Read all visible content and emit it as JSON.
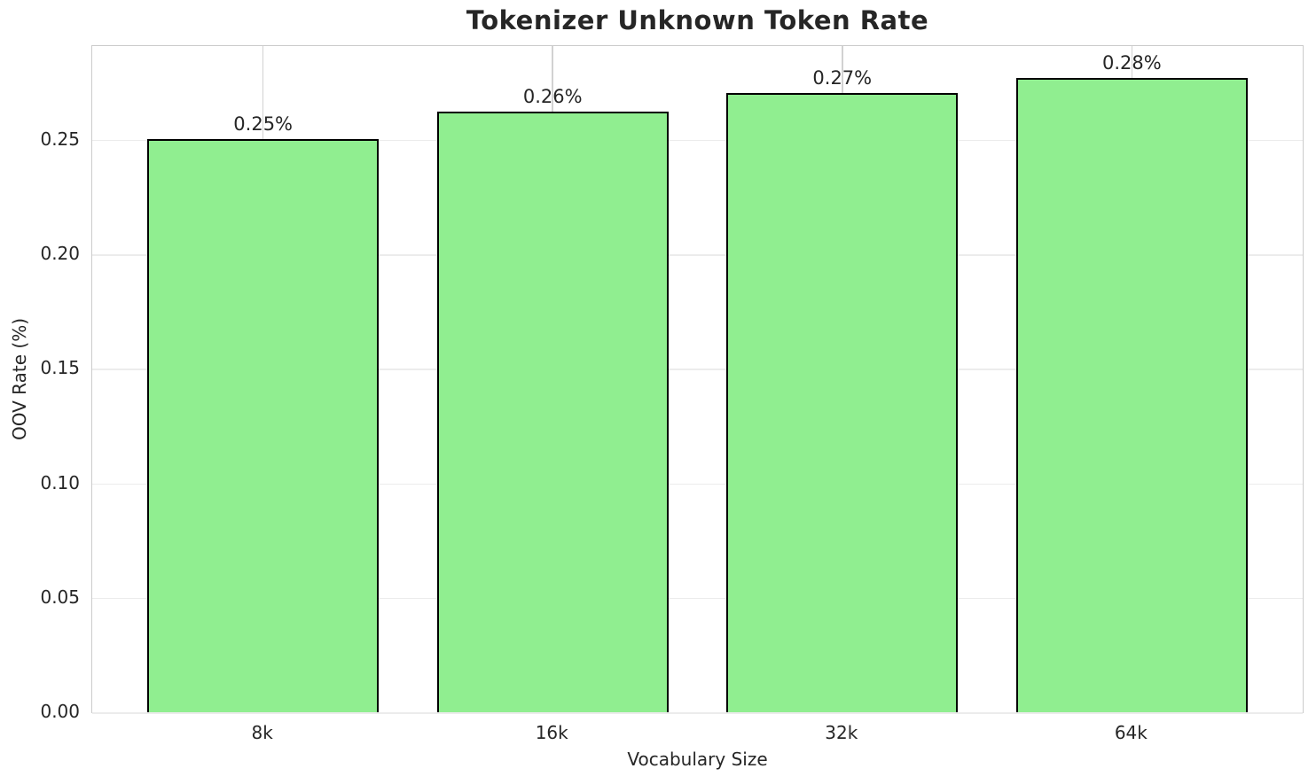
{
  "chart_data": {
    "type": "bar",
    "title": "Tokenizer Unknown Token Rate",
    "xlabel": "Vocabulary Size",
    "ylabel": "OOV Rate (%)",
    "categories": [
      "8k",
      "16k",
      "32k",
      "64k"
    ],
    "values": [
      0.2505,
      0.2625,
      0.2705,
      0.277
    ],
    "bar_labels": [
      "0.25%",
      "0.26%",
      "0.27%",
      "0.28%"
    ],
    "ytick_labels": [
      "0.00",
      "0.05",
      "0.10",
      "0.15",
      "0.20",
      "0.25"
    ],
    "ytick_values": [
      0.0,
      0.05,
      0.1,
      0.15,
      0.2,
      0.25
    ],
    "ylim": [
      0.0,
      0.291
    ],
    "xlim": [
      -0.59,
      3.59
    ],
    "bar_width": 0.8,
    "grid": "on",
    "legend": "none"
  },
  "colors": {
    "background": "#ffffff",
    "bar_fill": "#90EE90",
    "bar_edge": "#000000",
    "grid_horizontal": "#ececec",
    "grid_vertical": "#d2d2d2",
    "axis_border": "#cbcbcb",
    "text": "#262626"
  }
}
